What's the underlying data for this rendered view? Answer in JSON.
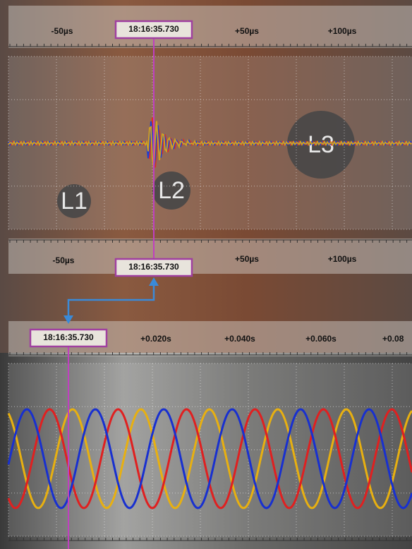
{
  "top_scale": {
    "labels": [
      "-50µs",
      "+50µs",
      "+100µs"
    ],
    "cursor": "18:16:35.730"
  },
  "photo_labels": [
    "L1",
    "L2",
    "L3"
  ],
  "middle_scale": {
    "labels": [
      "-50µs",
      "+50µs",
      "+100µs"
    ],
    "cursor": "18:16:35.730"
  },
  "bottom_scale": {
    "labels": [
      "+0.020s",
      "+0.040s",
      "+0.060s",
      "+0.08"
    ],
    "cursor": "18:16:35.730"
  }
}
